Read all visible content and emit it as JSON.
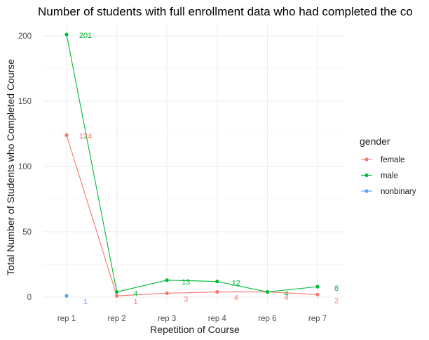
{
  "chart_data": {
    "type": "line",
    "title": "Number of students with full enrollment data who had completed the co",
    "xlabel": "Repetition of Course",
    "ylabel": "Total Number of Students who Completed Course",
    "categories": [
      "rep 1",
      "rep 2",
      "rep 3",
      "rep 4",
      "rep 6",
      "rep 7"
    ],
    "ylim": [
      0,
      200
    ],
    "yticks": [
      0,
      50,
      100,
      150,
      200
    ],
    "grid": true,
    "legend": {
      "title": "gender",
      "position": "right"
    },
    "series": [
      {
        "name": "female",
        "color": "#F8766D",
        "values": [
          124,
          1,
          3,
          4,
          4,
          2
        ]
      },
      {
        "name": "male",
        "color": "#00BA38",
        "values": [
          201,
          4,
          13,
          12,
          4,
          8
        ]
      },
      {
        "name": "nonbinary",
        "color": "#619CFF",
        "values": [
          1,
          null,
          null,
          null,
          null,
          null
        ]
      }
    ]
  }
}
